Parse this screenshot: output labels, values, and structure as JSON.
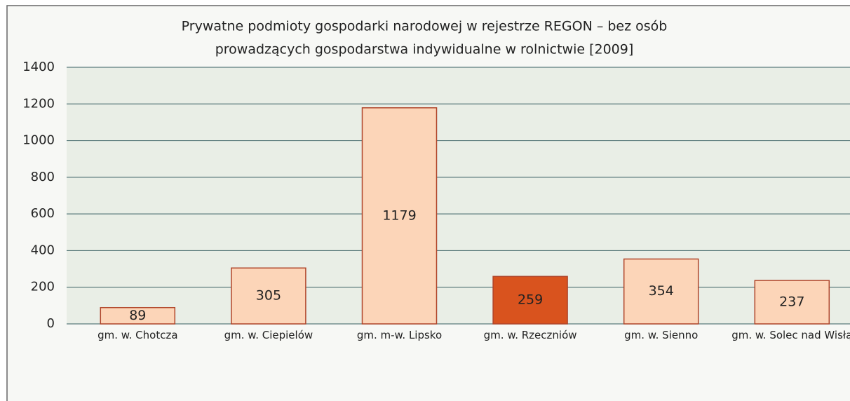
{
  "chart_data": {
    "type": "bar",
    "title": [
      "Prywatne podmioty gospodarki narodowej w rejestrze REGON – bez osób",
      "prowadzących gospodarstwa indywidualne w rolnictwie [2009]"
    ],
    "categories": [
      "gm. w. Chotcza",
      "gm. w. Ciepielów",
      "gm. m-w. Lipsko",
      "gm. w. Rzeczniów",
      "gm. w. Sienno",
      "gm. w. Solec nad Wisłą"
    ],
    "values": [
      89,
      305,
      1179,
      259,
      354,
      237
    ],
    "colors": [
      "#fcd5b8",
      "#fcd5b8",
      "#fcd5b8",
      "#d9531e",
      "#fcd5b8",
      "#fcd5b8"
    ],
    "ylim": [
      0,
      1400
    ],
    "yticks": [
      0,
      200,
      400,
      600,
      800,
      1000,
      1200,
      1400
    ],
    "grid": true
  }
}
